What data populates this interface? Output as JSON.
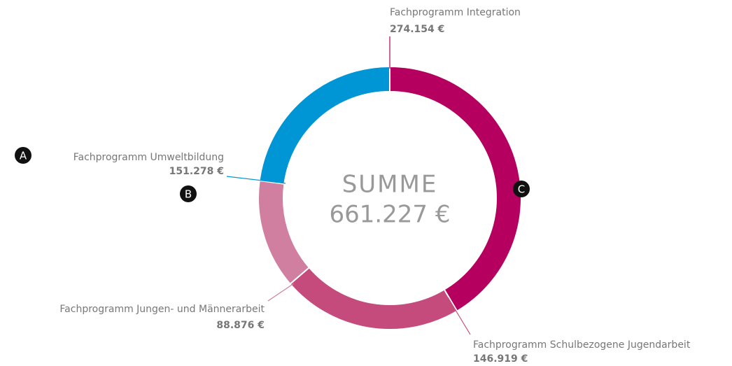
{
  "chart_data": {
    "type": "donut",
    "categories": [
      "Fachprogramm Integration",
      "Fachprogramm Schulbezogene Jugendarbeit",
      "Fachprogramm Jungen- und Männerarbeit",
      "Fachprogramm Umweltbildung"
    ],
    "values": [
      274154,
      146919,
      88876,
      151278
    ],
    "value_labels": [
      "274.154 €",
      "146.919 €",
      "88.876 €",
      "151.278 €"
    ],
    "colors": [
      "#b5005f",
      "#c44b7c",
      "#d07fa0",
      "#0096d6"
    ],
    "center_title": "SUMME",
    "center_value": "661.227 €",
    "markers": [
      "A",
      "B",
      "C"
    ]
  }
}
